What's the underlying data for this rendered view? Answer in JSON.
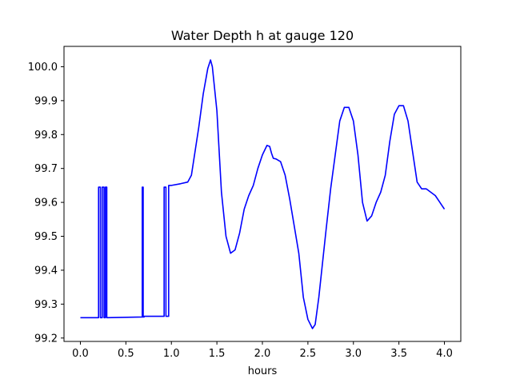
{
  "chart_data": {
    "type": "line",
    "title": "Water Depth h at gauge 120",
    "xlabel": "hours",
    "ylabel": "",
    "xlim": [
      -0.18,
      4.18
    ],
    "ylim": [
      99.19,
      100.06
    ],
    "xticks": [
      0.0,
      0.5,
      1.0,
      1.5,
      2.0,
      2.5,
      3.0,
      3.5,
      4.0
    ],
    "xtick_labels": [
      "0.0",
      "0.5",
      "1.0",
      "1.5",
      "2.0",
      "2.5",
      "3.0",
      "3.5",
      "4.0"
    ],
    "yticks": [
      99.2,
      99.3,
      99.4,
      99.5,
      99.6,
      99.7,
      99.8,
      99.9,
      100.0
    ],
    "ytick_labels": [
      "99.2",
      "99.3",
      "99.4",
      "99.5",
      "99.6",
      "99.7",
      "99.8",
      "99.9",
      "100.0"
    ],
    "grid": false,
    "series": [
      {
        "color": "#0000ff",
        "x": [
          0.0,
          0.2,
          0.2,
          0.22,
          0.22,
          0.24,
          0.24,
          0.26,
          0.26,
          0.275,
          0.275,
          0.29,
          0.29,
          0.68,
          0.68,
          0.69,
          0.69,
          0.7,
          0.7,
          0.92,
          0.92,
          0.94,
          0.94,
          0.97,
          0.97,
          1.0,
          1.1,
          1.18,
          1.22,
          1.3,
          1.35,
          1.4,
          1.43,
          1.45,
          1.5,
          1.55,
          1.6,
          1.65,
          1.7,
          1.75,
          1.8,
          1.85,
          1.9,
          1.95,
          2.0,
          2.05,
          2.08,
          2.1,
          2.12,
          2.15,
          2.2,
          2.25,
          2.3,
          2.35,
          2.4,
          2.45,
          2.5,
          2.55,
          2.58,
          2.62,
          2.7,
          2.75,
          2.8,
          2.85,
          2.9,
          2.95,
          3.0,
          3.05,
          3.1,
          3.15,
          3.2,
          3.25,
          3.3,
          3.35,
          3.4,
          3.45,
          3.5,
          3.55,
          3.6,
          3.65,
          3.7,
          3.75,
          3.8,
          3.85,
          3.9,
          3.95,
          4.0
        ],
        "y": [
          99.26,
          99.26,
          99.645,
          99.645,
          99.26,
          99.26,
          99.645,
          99.645,
          99.26,
          99.26,
          99.645,
          99.645,
          99.26,
          99.262,
          99.645,
          99.645,
          99.262,
          99.262,
          99.264,
          99.264,
          99.645,
          99.645,
          99.264,
          99.264,
          99.65,
          99.65,
          99.655,
          99.66,
          99.68,
          99.82,
          99.92,
          99.995,
          100.02,
          100.0,
          99.87,
          99.63,
          99.5,
          99.45,
          99.46,
          99.51,
          99.58,
          99.62,
          99.65,
          99.7,
          99.74,
          99.768,
          99.765,
          99.745,
          99.73,
          99.728,
          99.72,
          99.68,
          99.61,
          99.53,
          99.45,
          99.32,
          99.255,
          99.228,
          99.24,
          99.32,
          99.52,
          99.64,
          99.74,
          99.84,
          99.88,
          99.88,
          99.84,
          99.74,
          99.6,
          99.545,
          99.56,
          99.6,
          99.63,
          99.68,
          99.78,
          99.86,
          99.885,
          99.885,
          99.84,
          99.75,
          99.66,
          99.64,
          99.64,
          99.63,
          99.62,
          99.6,
          99.58
        ]
      }
    ]
  }
}
